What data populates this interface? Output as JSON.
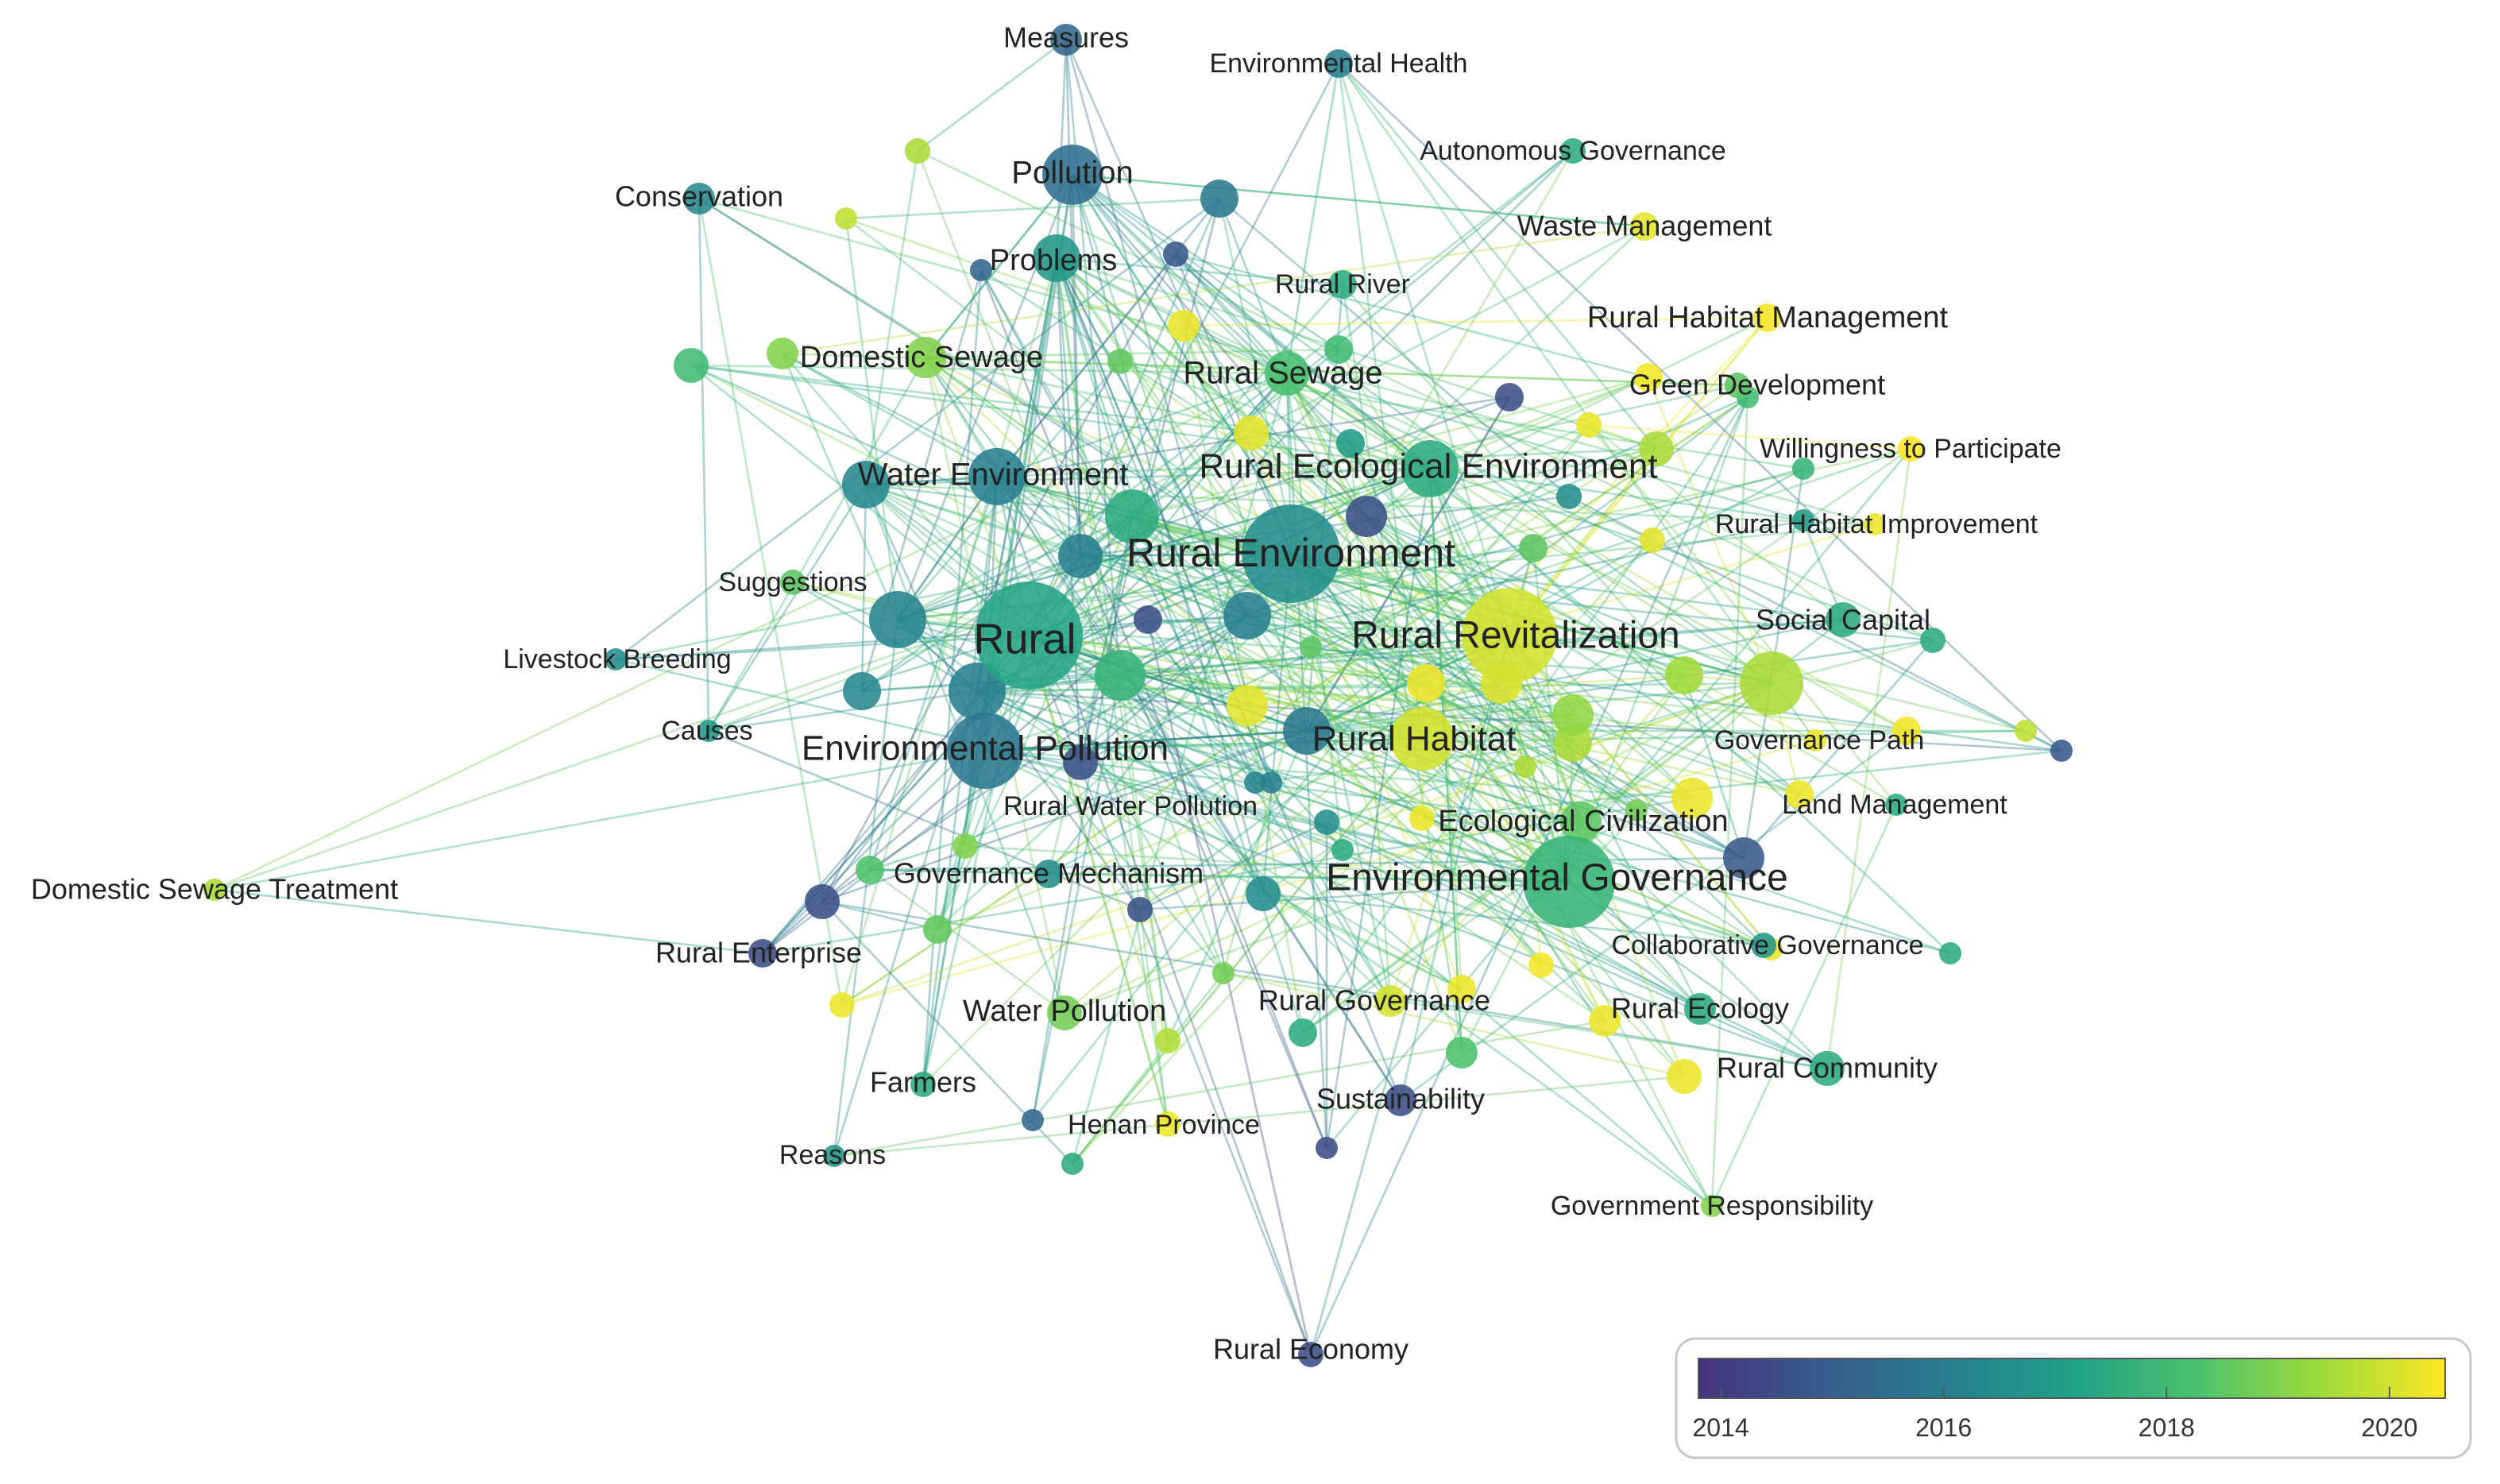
{
  "network": {
    "nodes": [
      {
        "label": "Rural",
        "year": 2017.3
      },
      {
        "label": "Rural Environment",
        "year": 2016.5
      },
      {
        "label": "Environmental Governance",
        "year": 2017.8
      },
      {
        "label": "Rural Revitalization",
        "year": 2020.0
      },
      {
        "label": "Environmental Pollution",
        "year": 2015.8
      },
      {
        "label": "Rural Habitat",
        "year": 2020.0
      },
      {
        "label": "Rural Ecological Environment",
        "year": 2017.5
      },
      {
        "label": "Water Environment",
        "year": 2016.0
      },
      {
        "label": "Pollution",
        "year": 2015.5
      },
      {
        "label": "Problems",
        "year": 2016.8
      },
      {
        "label": "Ecological Civilization",
        "year": 2018.5
      },
      {
        "label": "Rural Sewage",
        "year": 2018.2
      },
      {
        "label": "Domestic Sewage",
        "year": 2019.0
      },
      {
        "label": "Social Capital",
        "year": 2017.5
      },
      {
        "label": "Measures",
        "year": 2015.3
      },
      {
        "label": "Environmental Health",
        "year": 2016.0
      },
      {
        "label": "Autonomous Governance",
        "year": 2017.5
      },
      {
        "label": "Conservation",
        "year": 2016.3
      },
      {
        "label": "Waste Management",
        "year": 2020.2
      },
      {
        "label": "Rural River",
        "year": 2017.5
      },
      {
        "label": "Rural Habitat Management",
        "year": 2020.4
      },
      {
        "label": "Green Development",
        "year": 2018.5
      },
      {
        "label": "Willingness to Participate",
        "year": 2020.5
      },
      {
        "label": "Rural Habitat Improvement",
        "year": 2020.3
      },
      {
        "label": "Suggestions",
        "year": 2018.5
      },
      {
        "label": "Livestock Breeding",
        "year": 2016.5
      },
      {
        "label": "Causes",
        "year": 2016.8
      },
      {
        "label": "Governance Path",
        "year": 2020.3
      },
      {
        "label": "Land Management",
        "year": 2017.5
      },
      {
        "label": "Rural Water Pollution",
        "year": 2016.2
      },
      {
        "label": "Governance Mechanism",
        "year": 2016.5
      },
      {
        "label": "Domestic Sewage Treatment",
        "year": 2019.5
      },
      {
        "label": "Rural Enterprise",
        "year": 2014.5
      },
      {
        "label": "Collaborative Governance",
        "year": 2016.8
      },
      {
        "label": "Water Pollution",
        "year": 2018.8
      },
      {
        "label": "Rural Governance",
        "year": 2020.0
      },
      {
        "label": "Rural Ecology",
        "year": 2017.5
      },
      {
        "label": "Farmers",
        "year": 2017.5
      },
      {
        "label": "Rural Community",
        "year": 2017.5
      },
      {
        "label": "Sustainability",
        "year": 2014.5
      },
      {
        "label": "Henan Province",
        "year": 2020.3
      },
      {
        "label": "Reasons",
        "year": 2016.8
      },
      {
        "label": "Government Responsibility",
        "year": 2019.0
      },
      {
        "label": "Rural Economy",
        "year": 2014.5
      }
    ]
  },
  "legend": {
    "title": "",
    "min_year": 2013.8,
    "max_year": 2020.5,
    "ticks": [
      "2014",
      "2016",
      "2018",
      "2020"
    ],
    "colormap": [
      "#46337e",
      "#365c8d",
      "#277f8e",
      "#1fa187",
      "#4ac16d",
      "#9fda3a",
      "#fde725"
    ]
  }
}
